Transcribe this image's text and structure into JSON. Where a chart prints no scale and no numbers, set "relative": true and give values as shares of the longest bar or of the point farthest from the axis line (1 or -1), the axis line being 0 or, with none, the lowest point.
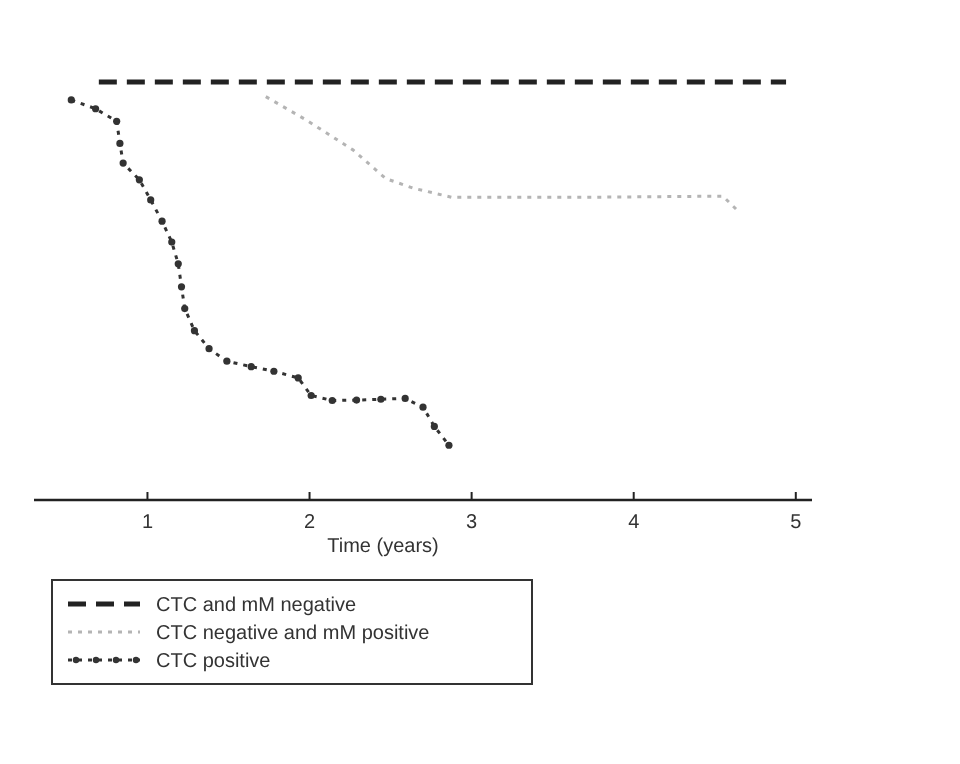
{
  "chart_data": {
    "type": "line",
    "relative": true,
    "xlabel": "Time (years)",
    "xlim": [
      0.3,
      5.1
    ],
    "xticks": [
      1,
      2,
      3,
      4,
      5
    ],
    "legend": "bottom",
    "tick_labels": "x",
    "series": [
      {
        "name": "CTC and mM negative",
        "color": "#222222",
        "line_style": "dashed",
        "marker": "none",
        "x": [
          0.7,
          4.94
        ],
        "values": [
          1,
          1
        ]
      },
      {
        "name": "CTC negative and mM positive",
        "color": "#b4b4b4",
        "line_style": "dotted",
        "marker": "none",
        "x": [
          1.73,
          1.98,
          2.27,
          2.47,
          2.64,
          2.88,
          3.62,
          4.55,
          4.65
        ],
        "values": [
          0.965,
          0.909,
          0.837,
          0.769,
          0.746,
          0.724,
          0.724,
          0.727,
          0.689
        ]
      },
      {
        "name": "CTC positive",
        "color": "#333333",
        "line_style": "dotted",
        "marker": "circle",
        "x": [
          0.53,
          0.68,
          0.81,
          0.83,
          0.85,
          0.95,
          1.02,
          1.09,
          1.15,
          1.19,
          1.21,
          1.23,
          1.29,
          1.38,
          1.49,
          1.64,
          1.78,
          1.93,
          2.01,
          2.14,
          2.29,
          2.44,
          2.59,
          2.7,
          2.77,
          2.86
        ],
        "values": [
          0.957,
          0.936,
          0.906,
          0.853,
          0.806,
          0.766,
          0.718,
          0.667,
          0.617,
          0.565,
          0.51,
          0.458,
          0.405,
          0.362,
          0.332,
          0.319,
          0.308,
          0.292,
          0.25,
          0.238,
          0.239,
          0.241,
          0.243,
          0.222,
          0.176,
          0.131
        ]
      }
    ]
  }
}
